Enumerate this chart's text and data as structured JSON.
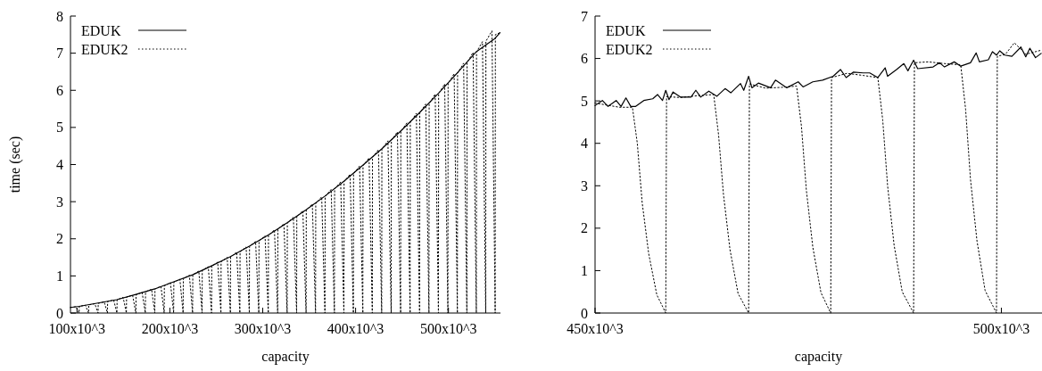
{
  "chart_data": [
    {
      "type": "line",
      "xlabel": "capacity",
      "ylabel": "time (sec)",
      "xlim": [
        93000,
        556000
      ],
      "ylim": [
        0,
        8
      ],
      "yticks": [
        0,
        1,
        2,
        3,
        4,
        5,
        6,
        7,
        8
      ],
      "xticks": [
        {
          "value": 100000,
          "label": "100x10^3"
        },
        {
          "value": 200000,
          "label": "200x10^3"
        },
        {
          "value": 300000,
          "label": "300x10^3"
        },
        {
          "value": 400000,
          "label": "400x10^3"
        },
        {
          "value": 500000,
          "label": "500x10^3"
        }
      ],
      "legend": "top left",
      "series": [
        {
          "name": "EDUK",
          "color": "#000000",
          "line_style": "solid",
          "x": [
            93000,
            102300,
            122700,
            143000,
            163400,
            183800,
            204100,
            224500,
            244900,
            265200,
            285600,
            306000,
            326300,
            346700,
            367000,
            387400,
            407800,
            428100,
            448500,
            468900,
            489200,
            509600,
            530000,
            550300,
            555500
          ],
          "values": [
            0.15,
            0.18,
            0.27,
            0.36,
            0.5,
            0.65,
            0.84,
            1.03,
            1.27,
            1.52,
            1.8,
            2.1,
            2.43,
            2.78,
            3.15,
            3.55,
            3.98,
            4.42,
            4.9,
            5.4,
            5.92,
            6.47,
            7.04,
            7.4,
            7.55
          ]
        },
        {
          "name": "EDUK2",
          "color": "#000000",
          "line_style": "dotted",
          "x": [
            93000,
            98800,
            102300,
            102500,
            109000,
            112500,
            112700,
            119200,
            122700,
            122900,
            129300,
            132800,
            133000,
            139500,
            143000,
            143200,
            149700,
            153200,
            153400,
            159900,
            163400,
            163600,
            170100,
            173600,
            173800,
            180300,
            183800,
            184000,
            190400,
            193900,
            194100,
            200600,
            204100,
            204300,
            210800,
            214300,
            214500,
            221000,
            224500,
            224700,
            231200,
            234700,
            234900,
            241400,
            244900,
            245100,
            251500,
            255000,
            255200,
            261700,
            265200,
            265400,
            271900,
            275400,
            275600,
            282100,
            285600,
            285800,
            292300,
            295800,
            296000,
            302500,
            306000,
            306200,
            312600,
            316100,
            316300,
            322800,
            326300,
            326500,
            333000,
            336500,
            336700,
            343200,
            346700,
            346900,
            353400,
            356900,
            357100,
            363500,
            367000,
            367200,
            373700,
            377200,
            377400,
            383900,
            387400,
            387600,
            394100,
            397600,
            397800,
            404300,
            407800,
            408000,
            414500,
            418000,
            418200,
            424600,
            428100,
            428300,
            434800,
            438300,
            438500,
            445000,
            448500,
            448700,
            455200,
            458700,
            458900,
            465400,
            468900,
            469100,
            475500,
            479000,
            479200,
            485700,
            489200,
            489400,
            495900,
            499400,
            499600,
            506100,
            509600,
            509800,
            516300,
            519800,
            520000,
            526500,
            530000,
            530200,
            536600,
            540100,
            540300,
            546800,
            550300,
            550500,
            555500
          ],
          "values": [
            0.15,
            0.17,
            0,
            0.18,
            0.21,
            0,
            0.22,
            0.25,
            0,
            0.26,
            0.3,
            0,
            0.31,
            0.35,
            0,
            0.36,
            0.42,
            0,
            0.43,
            0.48,
            0,
            0.49,
            0.56,
            0,
            0.57,
            0.64,
            0,
            0.65,
            0.72,
            0,
            0.73,
            0.82,
            0,
            0.83,
            0.91,
            0,
            0.92,
            1.02,
            0,
            1.03,
            1.13,
            0,
            1.14,
            1.25,
            0,
            1.26,
            1.37,
            0,
            1.38,
            1.5,
            0,
            1.51,
            1.64,
            0,
            1.65,
            1.78,
            0,
            1.79,
            1.93,
            0,
            1.94,
            2.08,
            0,
            2.09,
            2.24,
            0,
            2.25,
            2.41,
            0,
            2.42,
            2.58,
            0,
            2.59,
            2.76,
            0,
            2.77,
            2.94,
            0,
            2.95,
            3.13,
            0,
            3.14,
            3.33,
            0,
            3.34,
            3.53,
            0,
            3.54,
            3.74,
            0,
            3.75,
            3.96,
            0,
            3.97,
            4.18,
            0,
            4.19,
            4.4,
            0,
            4.41,
            4.64,
            0,
            4.65,
            4.88,
            0,
            4.89,
            5.12,
            0,
            5.13,
            5.38,
            0,
            5.39,
            5.63,
            0,
            5.64,
            5.9,
            0,
            5.91,
            6.17,
            0,
            6.18,
            6.45,
            0,
            6.46,
            6.73,
            0,
            6.74,
            7.02,
            0,
            7.03,
            7.31,
            0,
            7.32,
            7.6,
            0,
            7.5,
            7.55
          ]
        }
      ]
    },
    {
      "type": "line",
      "xlabel": "capacity",
      "xlim": [
        450000,
        505000
      ],
      "ylim": [
        0,
        7
      ],
      "yticks": [
        0,
        1,
        2,
        3,
        4,
        5,
        6,
        7
      ],
      "xticks": [
        {
          "value": 450000,
          "label": "450x10^3"
        },
        {
          "value": 500000,
          "label": "500x10^3"
        }
      ],
      "legend": "top left",
      "series": [
        {
          "name": "EDUK",
          "color": "#000000",
          "line_style": "solid",
          "x": [
            450000,
            450900,
            451600,
            452600,
            453200,
            453800,
            454400,
            455000,
            456000,
            457100,
            457700,
            458300,
            458700,
            459100,
            459600,
            460500,
            461800,
            462400,
            463000,
            464000,
            465000,
            466000,
            466700,
            467900,
            468300,
            468900,
            469300,
            470100,
            471600,
            472200,
            473600,
            475000,
            475600,
            476800,
            478000,
            479300,
            480200,
            480900,
            481800,
            483000,
            483800,
            484800,
            485700,
            486000,
            487100,
            488000,
            488500,
            489200,
            489700,
            491600,
            492400,
            493000,
            494200,
            495000,
            496200,
            496900,
            497300,
            498400,
            498900,
            499400,
            499800,
            500400,
            501300,
            502400,
            503000,
            503500,
            504200,
            504900
          ],
          "values": [
            4.89,
            5.01,
            4.87,
            5.01,
            4.87,
            5.07,
            4.87,
            4.87,
            5.01,
            5.05,
            5.15,
            5.01,
            5.25,
            5.03,
            5.21,
            5.09,
            5.09,
            5.25,
            5.09,
            5.23,
            5.11,
            5.29,
            5.19,
            5.41,
            5.25,
            5.58,
            5.31,
            5.42,
            5.31,
            5.49,
            5.31,
            5.45,
            5.33,
            5.45,
            5.49,
            5.58,
            5.74,
            5.55,
            5.68,
            5.66,
            5.66,
            5.55,
            5.78,
            5.58,
            5.74,
            5.88,
            5.71,
            5.96,
            5.76,
            5.8,
            5.9,
            5.8,
            5.92,
            5.82,
            5.9,
            6.13,
            5.92,
            5.97,
            6.16,
            6.08,
            6.18,
            6.08,
            6.05,
            6.27,
            6.04,
            6.24,
            6.02,
            6.12
          ]
        },
        {
          "name": "EDUK2",
          "color": "#000000",
          "line_style": "dotted",
          "x": [
            450000,
            451500,
            453000,
            454600,
            455200,
            455800,
            456600,
            457600,
            458700,
            458800,
            460500,
            462500,
            464600,
            465200,
            465800,
            466600,
            467600,
            468900,
            469000,
            471000,
            473000,
            474800,
            475400,
            476000,
            476800,
            477800,
            479000,
            479100,
            481000,
            483000,
            484800,
            485400,
            486000,
            486800,
            487800,
            489200,
            489300,
            491000,
            493000,
            495000,
            495600,
            496200,
            497000,
            498000,
            499400,
            499500,
            500500,
            501600,
            503000,
            505000
          ],
          "values": [
            4.95,
            4.9,
            4.85,
            4.85,
            4.0,
            2.6,
            1.4,
            0.43,
            0,
            5.1,
            5.08,
            5.12,
            5.15,
            4.2,
            2.8,
            1.5,
            0.46,
            0,
            5.4,
            5.3,
            5.32,
            5.35,
            4.4,
            2.9,
            1.55,
            0.48,
            0,
            5.55,
            5.65,
            5.6,
            5.55,
            4.55,
            3.0,
            1.6,
            0.5,
            0,
            5.9,
            5.92,
            5.88,
            5.85,
            4.8,
            3.15,
            1.7,
            0.53,
            0,
            6.05,
            6.1,
            6.37,
            6.1,
            6.2
          ]
        }
      ]
    }
  ]
}
